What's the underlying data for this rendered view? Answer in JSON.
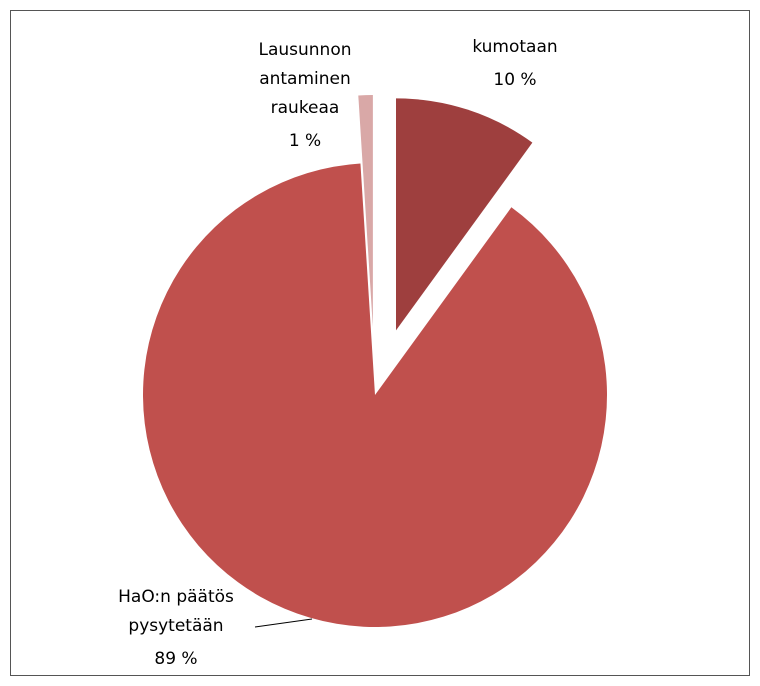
{
  "chart_data": {
    "type": "pie",
    "categories": [
      [
        "kumotaan"
      ],
      [
        "HaO:n päätös",
        "pysytetään"
      ],
      [
        "Lausunnon",
        "antaminen",
        "raukeaa"
      ]
    ],
    "values": [
      10,
      89,
      1
    ],
    "value_labels": [
      "10 %",
      "89 %",
      "1 %"
    ],
    "colors": [
      "#9e3f3e",
      "#c0504d",
      "#d9a8a7"
    ]
  }
}
